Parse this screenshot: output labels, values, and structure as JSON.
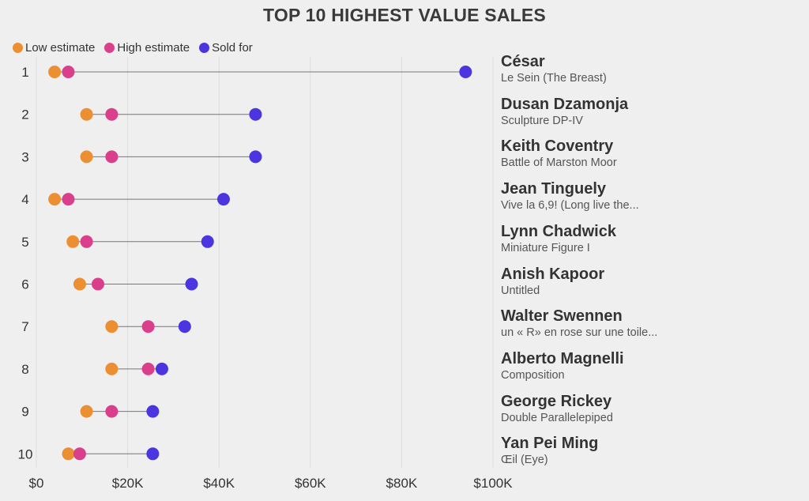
{
  "title": "TOP 10 HIGHEST VALUE SALES",
  "legend": [
    {
      "label": "Low estimate",
      "color": "#ec8f33"
    },
    {
      "label": "High estimate",
      "color": "#d93f8b"
    },
    {
      "label": "Sold for",
      "color": "#4a35e0"
    }
  ],
  "chart_data": {
    "type": "dumbbell",
    "title": "TOP 10 HIGHEST VALUE SALES",
    "x_range": [
      0,
      100000
    ],
    "x_ticks": [
      0,
      20000,
      40000,
      60000,
      80000,
      100000
    ],
    "x_tick_labels": [
      "$0",
      "$20K",
      "$40K",
      "$60K",
      "$80K",
      "$100K"
    ],
    "grid": true,
    "legend_position": "top-left",
    "series_names": [
      "Low estimate",
      "High estimate",
      "Sold for"
    ],
    "rows": [
      {
        "rank": "1",
        "artist": "César",
        "work": "Le Sein (The Breast)",
        "low": 4000,
        "high": 7000,
        "sold": 94000
      },
      {
        "rank": "2",
        "artist": "Dusan Dzamonja",
        "work": "Sculpture DP-IV",
        "low": 11000,
        "high": 16500,
        "sold": 48000
      },
      {
        "rank": "3",
        "artist": "Keith Coventry",
        "work": "Battle of Marston Moor",
        "low": 11000,
        "high": 16500,
        "sold": 48000
      },
      {
        "rank": "4",
        "artist": "Jean Tinguely",
        "work": "Vive la 6,9! (Long live the...",
        "low": 4000,
        "high": 7000,
        "sold": 41000
      },
      {
        "rank": "5",
        "artist": "Lynn Chadwick",
        "work": "Miniature Figure I",
        "low": 8000,
        "high": 11000,
        "sold": 37500
      },
      {
        "rank": "6",
        "artist": "Anish Kapoor",
        "work": "Untitled",
        "low": 9500,
        "high": 13500,
        "sold": 34000
      },
      {
        "rank": "7",
        "artist": "Walter Swennen",
        "work": "un « R» en rose sur une toile...",
        "low": 16500,
        "high": 24500,
        "sold": 32500
      },
      {
        "rank": "8",
        "artist": "Alberto Magnelli",
        "work": "Composition",
        "low": 16500,
        "high": 24500,
        "sold": 27500
      },
      {
        "rank": "9",
        "artist": "George Rickey",
        "work": "Double Parallelepiped",
        "low": 11000,
        "high": 16500,
        "sold": 25500
      },
      {
        "rank": "10",
        "artist": "Yan Pei Ming",
        "work": "Œil (Eye)",
        "low": 7000,
        "high": 9500,
        "sold": 25500
      }
    ]
  }
}
